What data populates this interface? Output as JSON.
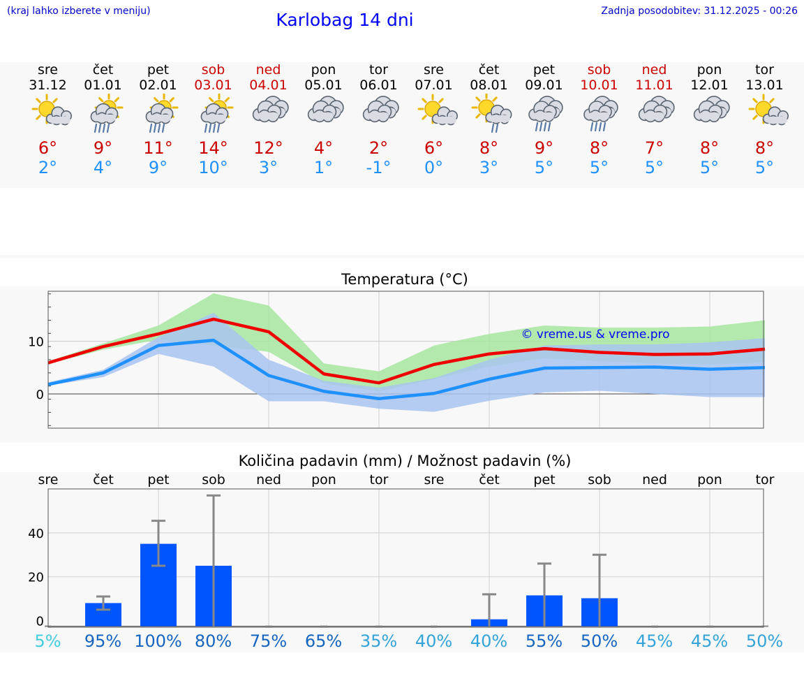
{
  "header": {
    "note": "(kraj lahko izberete v meniju)",
    "title": "Karlobag 14 dni",
    "updated": "Zadnja posodobitev: 31.12.2025 - 00:26"
  },
  "colors": {
    "max_line": "#ee0000",
    "min_line": "#1e90ff",
    "max_band": "#a8e6a1",
    "min_band": "#a8c4f0",
    "overlap_band": "#7fc8a8",
    "precip_bar": "#0055ff",
    "error_bar": "#888888",
    "title": "#0000ff"
  },
  "days": [
    {
      "name": "sre",
      "date": "31.12",
      "weekend": false,
      "icon": "sun-cloud-icon",
      "tmax": "6°",
      "tmin": "2°"
    },
    {
      "name": "čet",
      "date": "01.01",
      "weekend": false,
      "icon": "sun-cloud-rain-icon",
      "tmax": "9°",
      "tmin": "4°"
    },
    {
      "name": "pet",
      "date": "02.01",
      "weekend": false,
      "icon": "sun-cloud-rain-icon",
      "tmax": "11°",
      "tmin": "9°"
    },
    {
      "name": "sob",
      "date": "03.01",
      "weekend": true,
      "icon": "sun-cloud-rain-icon",
      "tmax": "14°",
      "tmin": "10°"
    },
    {
      "name": "ned",
      "date": "04.01",
      "weekend": true,
      "icon": "clouds-icon",
      "tmax": "12°",
      "tmin": "3°"
    },
    {
      "name": "pon",
      "date": "05.01",
      "weekend": false,
      "icon": "clouds-icon",
      "tmax": "4°",
      "tmin": "1°"
    },
    {
      "name": "tor",
      "date": "06.01",
      "weekend": false,
      "icon": "clouds-icon",
      "tmax": "2°",
      "tmin": "-1°"
    },
    {
      "name": "sre",
      "date": "07.01",
      "weekend": false,
      "icon": "sun-cloud-icon",
      "tmax": "6°",
      "tmin": "0°"
    },
    {
      "name": "čet",
      "date": "08.01",
      "weekend": false,
      "icon": "sun-cloud-drizzle-icon",
      "tmax": "8°",
      "tmin": "3°"
    },
    {
      "name": "pet",
      "date": "09.01",
      "weekend": false,
      "icon": "clouds-rain-icon",
      "tmax": "9°",
      "tmin": "5°"
    },
    {
      "name": "sob",
      "date": "10.01",
      "weekend": true,
      "icon": "clouds-rain-icon",
      "tmax": "8°",
      "tmin": "5°"
    },
    {
      "name": "ned",
      "date": "11.01",
      "weekend": true,
      "icon": "clouds-icon",
      "tmax": "7°",
      "tmin": "5°"
    },
    {
      "name": "pon",
      "date": "12.01",
      "weekend": false,
      "icon": "clouds-icon",
      "tmax": "8°",
      "tmin": "5°"
    },
    {
      "name": "tor",
      "date": "13.01",
      "weekend": false,
      "icon": "sun-cloud-icon",
      "tmax": "8°",
      "tmin": "5°"
    }
  ],
  "chart_data": [
    {
      "type": "line",
      "title": "Temperatura (°C)",
      "watermark": "© vreme.us & vreme.pro",
      "categories": [
        "31.12",
        "01.01",
        "02.01",
        "03.01",
        "04.01",
        "05.01",
        "06.01",
        "07.01",
        "08.01",
        "09.01",
        "10.01",
        "11.01",
        "12.01",
        "13.01"
      ],
      "ylim": [
        -6.5,
        19.5
      ],
      "yticks": [
        0,
        10
      ],
      "series": [
        {
          "name": "max",
          "values": [
            5.9,
            9.0,
            11.4,
            14.2,
            11.8,
            3.8,
            2.1,
            5.6,
            7.6,
            8.6,
            7.9,
            7.5,
            7.6,
            8.5
          ]
        },
        {
          "name": "min",
          "values": [
            1.8,
            4.0,
            9.2,
            10.2,
            3.5,
            0.5,
            -0.9,
            0.1,
            2.8,
            4.9,
            5.0,
            5.1,
            4.7,
            5.0
          ]
        },
        {
          "name": "max_range_high",
          "values": [
            6.2,
            9.6,
            13.0,
            19.1,
            16.8,
            5.8,
            4.3,
            9.2,
            11.4,
            13.0,
            12.6,
            12.6,
            12.8,
            14.0
          ]
        },
        {
          "name": "max_range_low",
          "values": [
            5.7,
            8.4,
            10.3,
            9.2,
            8.0,
            2.0,
            0.5,
            2.8,
            5.2,
            6.8,
            6.2,
            5.8,
            5.6,
            6.0
          ]
        },
        {
          "name": "min_range_high",
          "values": [
            2.2,
            4.6,
            10.8,
            15.4,
            6.5,
            2.5,
            1.2,
            3.0,
            6.5,
            9.2,
            9.4,
            9.4,
            9.8,
            10.6
          ]
        },
        {
          "name": "min_range_low",
          "values": [
            1.6,
            3.2,
            7.6,
            5.2,
            -1.4,
            -1.4,
            -2.8,
            -3.4,
            -1.3,
            0.3,
            0.6,
            0.0,
            -0.6,
            -0.6
          ]
        }
      ]
    },
    {
      "type": "bar",
      "title": "Količina padavin (mm) / Možnost padavin (%)",
      "categories": [
        "sre",
        "čet",
        "pet",
        "sob",
        "ned",
        "pon",
        "tor",
        "sre",
        "čet",
        "pet",
        "sob",
        "ned",
        "pon",
        "tor"
      ],
      "ylim": [
        -3,
        60
      ],
      "yticks": [
        0,
        20,
        40
      ],
      "values": [
        0,
        8.0,
        35.0,
        25.0,
        0,
        0,
        0,
        0,
        0.6,
        11.5,
        10.2,
        0,
        0,
        0
      ],
      "error_high": [
        0,
        11.0,
        45.5,
        57.0,
        0,
        0,
        0,
        0,
        12.0,
        26.0,
        30.0,
        0,
        0,
        0
      ],
      "error_low": [
        0,
        5.0,
        25.0,
        0,
        0,
        0,
        0,
        0,
        0,
        0,
        0,
        0,
        0,
        0
      ],
      "probability": [
        "5%",
        "95%",
        "100%",
        "80%",
        "75%",
        "65%",
        "35%",
        "40%",
        "40%",
        "55%",
        "50%",
        "45%",
        "45%",
        "50%"
      ],
      "probability_colors": [
        "#44ccdd",
        "#1565c0",
        "#1565c0",
        "#1565c0",
        "#1565c0",
        "#1565c0",
        "#33a3d8",
        "#33a3d8",
        "#33a3d8",
        "#1565c0",
        "#1565c0",
        "#33a3d8",
        "#33a3d8",
        "#33a3d8"
      ]
    }
  ]
}
